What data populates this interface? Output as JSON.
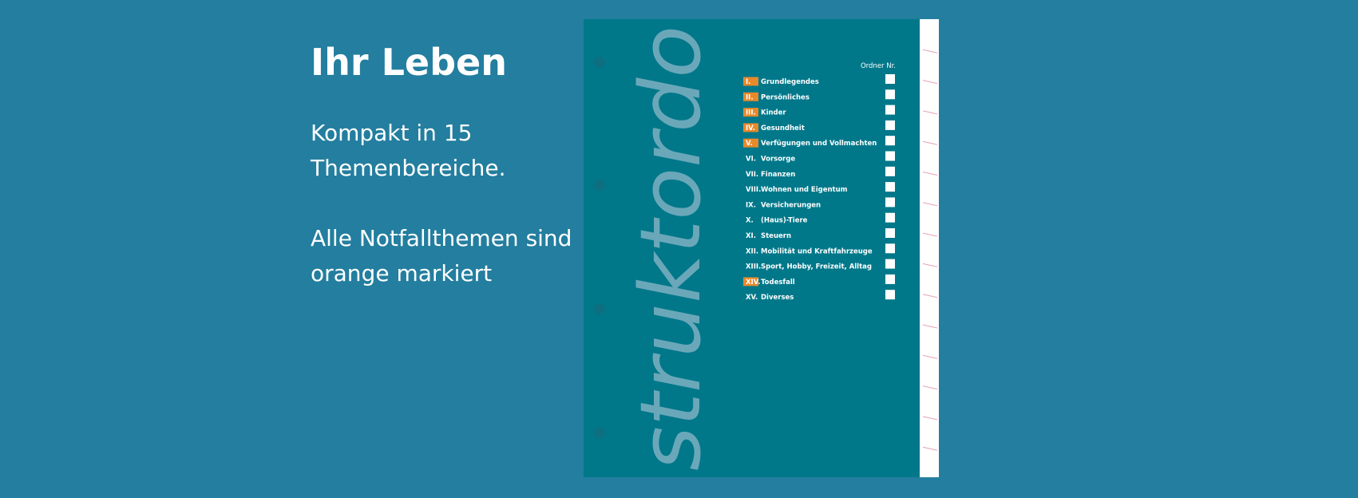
{
  "slide": {
    "title": "Ihr Leben",
    "paragraphs": [
      [
        "Kompakt in 15",
        "Themenbereiche."
      ],
      [
        "Alle Notfallthemen sind",
        "orange markiert"
      ]
    ],
    "binder": {
      "brand": "struktordo",
      "column_header": "Ordner Nr.",
      "items": [
        {
          "numeral": "I.",
          "label": "Grundlegendes",
          "highlighted": true
        },
        {
          "numeral": "II.",
          "label": "Persönliches",
          "highlighted": true
        },
        {
          "numeral": "III.",
          "label": "Kinder",
          "highlighted": true
        },
        {
          "numeral": "IV.",
          "label": "Gesundheit",
          "highlighted": true
        },
        {
          "numeral": "V.",
          "label": "Verfügungen und Vollmachten",
          "highlighted": true
        },
        {
          "numeral": "VI.",
          "label": "Vorsorge",
          "highlighted": false
        },
        {
          "numeral": "VII.",
          "label": "Finanzen",
          "highlighted": false
        },
        {
          "numeral": "VIII.",
          "label": "Wohnen und Eigentum",
          "highlighted": false
        },
        {
          "numeral": "IX.",
          "label": "Versicherungen",
          "highlighted": false
        },
        {
          "numeral": "X.",
          "label": "(Haus)-Tiere",
          "highlighted": false
        },
        {
          "numeral": "XI.",
          "label": "Steuern",
          "highlighted": false
        },
        {
          "numeral": "XII.",
          "label": "Mobilität und Kraftfahrzeuge",
          "highlighted": false
        },
        {
          "numeral": "XIII.",
          "label": "Sport, Hobby, Freizeit, Alltag",
          "highlighted": false
        },
        {
          "numeral": "XIV.",
          "label": "Todesfall",
          "highlighted": true
        },
        {
          "numeral": "XV.",
          "label": "Diverses",
          "highlighted": false
        }
      ]
    }
  }
}
